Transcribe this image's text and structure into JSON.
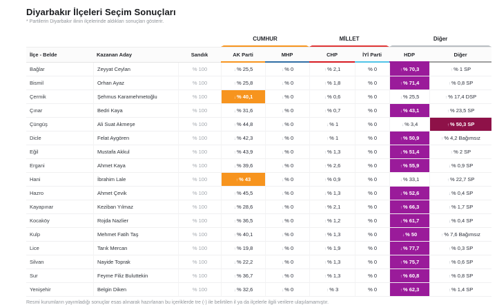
{
  "page": {
    "title": "Diyarbakır İlçeleri Seçim Sonuçları",
    "subtitle": "* Partilerin Diyarbakır ilinin ilçelerinde aldıkları sonuçları gösterir.",
    "footnote": "Resmi kurumların yayımladığı sonuçlar esas alınarak hazırlanan bu içeriklerde tre (-) ile belirtilen il ya da ilçelerle ilgili verilere ulaşılamamıştır."
  },
  "table": {
    "groups": [
      {
        "label": "CUMHUR",
        "color": "#f7941e"
      },
      {
        "label": "MİLLET",
        "color": "#e03535"
      },
      {
        "label": "Diğer",
        "color": "#b9bdc2"
      }
    ],
    "columns": {
      "district": "İlçe - Belde",
      "candidate": "Kazanan Aday",
      "ballot": "Sandık"
    },
    "parties": [
      {
        "label": "AK Parti",
        "color": "#f7941e"
      },
      {
        "label": "MHP",
        "color": "#2e6da4"
      },
      {
        "label": "CHP",
        "color": "#d71920"
      },
      {
        "label": "İYİ Parti",
        "color": "#4fc3e8"
      },
      {
        "label": "HDP",
        "color": "#9a1b9a"
      },
      {
        "label": "Diğer",
        "color": "#9e9e9e"
      }
    ],
    "highlight_colors": {
      "akp": "#f7941e",
      "hdp": "#9a1b9a",
      "sp": "#8e1148"
    },
    "rows": [
      {
        "district": "Bağlar",
        "candidate": "Zeyyat Ceylan",
        "ballot": "% 100",
        "cells": [
          {
            "v": "% 25,5",
            "dir": "down",
            "h": ""
          },
          {
            "v": "% 0",
            "dir": "down",
            "h": ""
          },
          {
            "v": "% 2,1",
            "dir": "up",
            "h": ""
          },
          {
            "v": "% 0",
            "dir": "",
            "h": ""
          },
          {
            "v": "% 70,3",
            "dir": "up",
            "h": "hdp"
          },
          {
            "v": "% 1 SP",
            "dir": "up",
            "h": ""
          }
        ]
      },
      {
        "district": "Bismil",
        "candidate": "Orhan Ayaz",
        "ballot": "% 100",
        "cells": [
          {
            "v": "% 25,8",
            "dir": "up",
            "h": ""
          },
          {
            "v": "% 0",
            "dir": "down",
            "h": ""
          },
          {
            "v": "% 1,8",
            "dir": "up",
            "h": ""
          },
          {
            "v": "% 0",
            "dir": "",
            "h": ""
          },
          {
            "v": "% 71,4",
            "dir": "up",
            "h": "hdp"
          },
          {
            "v": "% 0,8 SP",
            "dir": "up",
            "h": ""
          }
        ]
      },
      {
        "district": "Çermik",
        "candidate": "Şehmus Karamehmetoğlu",
        "ballot": "% 100",
        "cells": [
          {
            "v": "% 40,1",
            "dir": "down",
            "h": "akp"
          },
          {
            "v": "% 0",
            "dir": "down",
            "h": ""
          },
          {
            "v": "% 0,6",
            "dir": "down",
            "h": ""
          },
          {
            "v": "% 0",
            "dir": "",
            "h": ""
          },
          {
            "v": "% 25,5",
            "dir": "down",
            "h": ""
          },
          {
            "v": "% 17,4 DSP",
            "dir": "up",
            "h": ""
          }
        ]
      },
      {
        "district": "Çınar",
        "candidate": "Bedri Kaya",
        "ballot": "% 100",
        "cells": [
          {
            "v": "% 31,6",
            "dir": "down",
            "h": ""
          },
          {
            "v": "% 0",
            "dir": "down",
            "h": ""
          },
          {
            "v": "% 0,7",
            "dir": "up",
            "h": ""
          },
          {
            "v": "% 0",
            "dir": "",
            "h": ""
          },
          {
            "v": "% 43,1",
            "dir": "down",
            "h": "hdp"
          },
          {
            "v": "% 23,5 SP",
            "dir": "up",
            "h": ""
          }
        ]
      },
      {
        "district": "Çüngüş",
        "candidate": "Ali Suat Akmeşe",
        "ballot": "% 100",
        "cells": [
          {
            "v": "% 44,8",
            "dir": "up",
            "h": ""
          },
          {
            "v": "% 0",
            "dir": "down",
            "h": ""
          },
          {
            "v": "% 1",
            "dir": "down",
            "h": ""
          },
          {
            "v": "% 0",
            "dir": "",
            "h": ""
          },
          {
            "v": "% 3,4",
            "dir": "down",
            "h": ""
          },
          {
            "v": "% 50,3 SP",
            "dir": "up",
            "h": "sp"
          }
        ]
      },
      {
        "district": "Dicle",
        "candidate": "Felat Aygören",
        "ballot": "% 100",
        "cells": [
          {
            "v": "% 42,3",
            "dir": "down",
            "h": ""
          },
          {
            "v": "% 0",
            "dir": "down",
            "h": ""
          },
          {
            "v": "% 1",
            "dir": "up",
            "h": ""
          },
          {
            "v": "% 0",
            "dir": "",
            "h": ""
          },
          {
            "v": "% 50,9",
            "dir": "up",
            "h": "hdp"
          },
          {
            "v": "% 4,2 Bağımsız",
            "dir": "up",
            "h": ""
          }
        ]
      },
      {
        "district": "Eğil",
        "candidate": "Mustafa Akkul",
        "ballot": "% 100",
        "cells": [
          {
            "v": "% 43,9",
            "dir": "up",
            "h": ""
          },
          {
            "v": "% 0",
            "dir": "down",
            "h": ""
          },
          {
            "v": "% 1,3",
            "dir": "up",
            "h": ""
          },
          {
            "v": "% 0",
            "dir": "",
            "h": ""
          },
          {
            "v": "% 51,4",
            "dir": "down",
            "h": "hdp"
          },
          {
            "v": "% 2 SP",
            "dir": "up",
            "h": ""
          }
        ]
      },
      {
        "district": "Ergani",
        "candidate": "Ahmet Kaya",
        "ballot": "% 100",
        "cells": [
          {
            "v": "% 39,6",
            "dir": "down",
            "h": ""
          },
          {
            "v": "% 0",
            "dir": "down",
            "h": ""
          },
          {
            "v": "% 2,6",
            "dir": "up",
            "h": ""
          },
          {
            "v": "% 0",
            "dir": "",
            "h": ""
          },
          {
            "v": "% 55,9",
            "dir": "up",
            "h": "hdp"
          },
          {
            "v": "% 0,9 SP",
            "dir": "down",
            "h": ""
          }
        ]
      },
      {
        "district": "Hani",
        "candidate": "İbrahim Lale",
        "ballot": "% 100",
        "cells": [
          {
            "v": "% 43",
            "dir": "up",
            "h": "akp"
          },
          {
            "v": "% 0",
            "dir": "down",
            "h": ""
          },
          {
            "v": "% 0,9",
            "dir": "up",
            "h": ""
          },
          {
            "v": "% 0",
            "dir": "",
            "h": ""
          },
          {
            "v": "% 33,1",
            "dir": "down",
            "h": ""
          },
          {
            "v": "% 22,7 SP",
            "dir": "up",
            "h": ""
          }
        ]
      },
      {
        "district": "Hazro",
        "candidate": "Ahmet Çevik",
        "ballot": "% 100",
        "cells": [
          {
            "v": "% 45,5",
            "dir": "up",
            "h": ""
          },
          {
            "v": "% 0",
            "dir": "down",
            "h": ""
          },
          {
            "v": "% 1,3",
            "dir": "down",
            "h": ""
          },
          {
            "v": "% 0",
            "dir": "",
            "h": ""
          },
          {
            "v": "% 52,6",
            "dir": "down",
            "h": "hdp"
          },
          {
            "v": "% 0,4 SP",
            "dir": "down",
            "h": ""
          }
        ]
      },
      {
        "district": "Kayapınar",
        "candidate": "Keziban Yılmaz",
        "ballot": "% 100",
        "cells": [
          {
            "v": "% 28,6",
            "dir": "down",
            "h": ""
          },
          {
            "v": "% 0",
            "dir": "down",
            "h": ""
          },
          {
            "v": "% 2,1",
            "dir": "up",
            "h": ""
          },
          {
            "v": "% 0",
            "dir": "",
            "h": ""
          },
          {
            "v": "% 66,3",
            "dir": "up",
            "h": "hdp"
          },
          {
            "v": "% 1,7 SP",
            "dir": "up",
            "h": ""
          }
        ]
      },
      {
        "district": "Kocaköy",
        "candidate": "Rojda Nazlier",
        "ballot": "% 100",
        "cells": [
          {
            "v": "% 36,5",
            "dir": "up",
            "h": ""
          },
          {
            "v": "% 0",
            "dir": "down",
            "h": ""
          },
          {
            "v": "% 1,2",
            "dir": "up",
            "h": ""
          },
          {
            "v": "% 0",
            "dir": "",
            "h": ""
          },
          {
            "v": "% 61,7",
            "dir": "down",
            "h": "hdp"
          },
          {
            "v": "% 0,4 SP",
            "dir": "down",
            "h": ""
          }
        ]
      },
      {
        "district": "Kulp",
        "candidate": "Mehmet Fatih Taş",
        "ballot": "% 100",
        "cells": [
          {
            "v": "% 40,1",
            "dir": "up",
            "h": ""
          },
          {
            "v": "% 0",
            "dir": "down",
            "h": ""
          },
          {
            "v": "% 1,3",
            "dir": "up",
            "h": ""
          },
          {
            "v": "% 0",
            "dir": "",
            "h": ""
          },
          {
            "v": "% 50",
            "dir": "down",
            "h": "hdp"
          },
          {
            "v": "% 7,6 Bağımsız",
            "dir": "up",
            "h": ""
          }
        ]
      },
      {
        "district": "Lice",
        "candidate": "Tarık Mercan",
        "ballot": "% 100",
        "cells": [
          {
            "v": "% 19,8",
            "dir": "up",
            "h": ""
          },
          {
            "v": "% 0",
            "dir": "down",
            "h": ""
          },
          {
            "v": "% 1,9",
            "dir": "up",
            "h": ""
          },
          {
            "v": "% 0",
            "dir": "",
            "h": ""
          },
          {
            "v": "% 77,7",
            "dir": "down",
            "h": "hdp"
          },
          {
            "v": "% 0,3 SP",
            "dir": "up",
            "h": ""
          }
        ]
      },
      {
        "district": "Silvan",
        "candidate": "Nayide Toprak",
        "ballot": "% 100",
        "cells": [
          {
            "v": "% 22,2",
            "dir": "down",
            "h": ""
          },
          {
            "v": "% 0",
            "dir": "down",
            "h": ""
          },
          {
            "v": "% 1,3",
            "dir": "up",
            "h": ""
          },
          {
            "v": "% 0",
            "dir": "",
            "h": ""
          },
          {
            "v": "% 75,7",
            "dir": "up",
            "h": "hdp"
          },
          {
            "v": "% 0,6 SP",
            "dir": "up",
            "h": ""
          }
        ]
      },
      {
        "district": "Sur",
        "candidate": "Feyme Filiz Buluttekin",
        "ballot": "% 100",
        "cells": [
          {
            "v": "% 36,7",
            "dir": "up",
            "h": ""
          },
          {
            "v": "% 0",
            "dir": "down",
            "h": ""
          },
          {
            "v": "% 1,3",
            "dir": "up",
            "h": ""
          },
          {
            "v": "% 0",
            "dir": "",
            "h": ""
          },
          {
            "v": "% 60,8",
            "dir": "up",
            "h": "hdp"
          },
          {
            "v": "% 0,8 SP",
            "dir": "up",
            "h": ""
          }
        ]
      },
      {
        "district": "Yenişehir",
        "candidate": "Belgin Diken",
        "ballot": "% 100",
        "cells": [
          {
            "v": "% 32,6",
            "dir": "down",
            "h": ""
          },
          {
            "v": "% 0",
            "dir": "down",
            "h": ""
          },
          {
            "v": "% 3",
            "dir": "up",
            "h": ""
          },
          {
            "v": "% 0",
            "dir": "",
            "h": ""
          },
          {
            "v": "% 62,3",
            "dir": "up",
            "h": "hdp"
          },
          {
            "v": "% 1,4 SP",
            "dir": "up",
            "h": ""
          }
        ]
      }
    ]
  }
}
